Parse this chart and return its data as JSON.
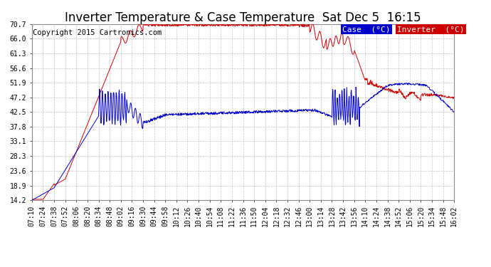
{
  "title": "Inverter Temperature & Case Temperature  Sat Dec 5  16:15",
  "copyright": "Copyright 2015 Cartronics.com",
  "legend_case_label": "Case  (°C)",
  "legend_inverter_label": "Inverter  (°C)",
  "case_color": "#0000cc",
  "inverter_color": "#cc0000",
  "background_color": "#ffffff",
  "plot_bg_color": "#ffffff",
  "grid_color": "#bbbbbb",
  "yticks": [
    14.2,
    18.9,
    23.6,
    28.3,
    33.1,
    37.8,
    42.5,
    47.2,
    51.9,
    56.6,
    61.3,
    66.0,
    70.7
  ],
  "ymin": 14.2,
  "ymax": 70.7,
  "xtick_labels": [
    "07:10",
    "07:24",
    "07:38",
    "07:52",
    "08:06",
    "08:20",
    "08:34",
    "08:48",
    "09:02",
    "09:16",
    "09:30",
    "09:44",
    "09:58",
    "10:12",
    "10:26",
    "10:40",
    "10:54",
    "11:08",
    "11:22",
    "11:36",
    "11:50",
    "12:04",
    "12:18",
    "12:32",
    "12:46",
    "13:00",
    "13:14",
    "13:28",
    "13:42",
    "13:56",
    "14:10",
    "14:24",
    "14:38",
    "14:52",
    "15:06",
    "15:20",
    "15:34",
    "15:48",
    "16:02"
  ],
  "title_fontsize": 12,
  "copyright_fontsize": 7.5,
  "tick_fontsize": 7,
  "legend_fontsize": 8
}
